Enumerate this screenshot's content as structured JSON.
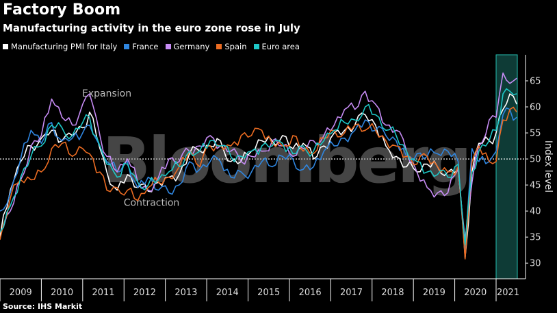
{
  "header": {
    "title": "Factory Boom",
    "subtitle": "Manufacturing activity in the euro zone rose in July"
  },
  "source": "Source: IHS Markit",
  "watermark": "Bloomberg",
  "chart_data": {
    "type": "line",
    "title": "Factory Boom",
    "subtitle": "Manufacturing activity in the euro zone rose in July",
    "xlabel": "",
    "ylabel": "Index level",
    "ylim": [
      27,
      70
    ],
    "yticks": [
      30,
      35,
      40,
      45,
      50,
      55,
      60,
      65
    ],
    "xticks": [
      "2009",
      "2010",
      "2011",
      "2012",
      "2013",
      "2014",
      "2015",
      "2016",
      "2017",
      "2018",
      "2019",
      "2020",
      "2021"
    ],
    "x_start": "2009-01",
    "x_end": "2021-07",
    "reference_line": 50,
    "highlight_region": {
      "from": "2021-01",
      "to": "2021-07",
      "color": "#0e3b36",
      "border": "#25c2b4"
    },
    "annotations": [
      {
        "text": "Expansion",
        "x": "2011-08",
        "y": 62
      },
      {
        "text": "Contraction",
        "x": "2012-09",
        "y": 41
      }
    ],
    "legend_position": "top",
    "grid": false,
    "series": [
      {
        "name": "Manufacturing PMI for Italy",
        "color": "#ffffff",
        "keypoints": [
          [
            "2009-01",
            35.0
          ],
          [
            "2009-04",
            44.0
          ],
          [
            "2009-07",
            49.5
          ],
          [
            "2009-10",
            52.5
          ],
          [
            "2010-01",
            54.0
          ],
          [
            "2010-04",
            55.5
          ],
          [
            "2010-07",
            53.5
          ],
          [
            "2010-10",
            54.5
          ],
          [
            "2011-01",
            56.0
          ],
          [
            "2011-03",
            59.0
          ],
          [
            "2011-06",
            52.0
          ],
          [
            "2011-08",
            47.5
          ],
          [
            "2011-11",
            44.0
          ],
          [
            "2012-02",
            47.0
          ],
          [
            "2012-05",
            44.5
          ],
          [
            "2012-08",
            43.8
          ],
          [
            "2012-11",
            45.5
          ],
          [
            "2013-02",
            46.5
          ],
          [
            "2013-05",
            47.0
          ],
          [
            "2013-08",
            51.0
          ],
          [
            "2013-11",
            51.5
          ],
          [
            "2014-02",
            52.5
          ],
          [
            "2014-05",
            53.5
          ],
          [
            "2014-08",
            49.5
          ],
          [
            "2014-11",
            49.5
          ],
          [
            "2015-02",
            51.5
          ],
          [
            "2015-05",
            53.5
          ],
          [
            "2015-08",
            53.5
          ],
          [
            "2015-11",
            54.5
          ],
          [
            "2016-02",
            52.0
          ],
          [
            "2016-05",
            53.0
          ],
          [
            "2016-08",
            50.0
          ],
          [
            "2016-11",
            52.5
          ],
          [
            "2017-02",
            55.0
          ],
          [
            "2017-05",
            55.5
          ],
          [
            "2017-08",
            56.5
          ],
          [
            "2017-11",
            58.5
          ],
          [
            "2018-02",
            56.5
          ],
          [
            "2018-05",
            52.5
          ],
          [
            "2018-08",
            50.5
          ],
          [
            "2018-11",
            48.5
          ],
          [
            "2019-02",
            47.5
          ],
          [
            "2019-05",
            49.0
          ],
          [
            "2019-08",
            48.5
          ],
          [
            "2019-11",
            47.5
          ],
          [
            "2020-02",
            48.0
          ],
          [
            "2020-04",
            31.0
          ],
          [
            "2020-06",
            47.5
          ],
          [
            "2020-08",
            53.0
          ],
          [
            "2020-11",
            53.5
          ],
          [
            "2021-01",
            55.0
          ],
          [
            "2021-03",
            59.5
          ],
          [
            "2021-05",
            62.5
          ],
          [
            "2021-07",
            60.5
          ]
        ]
      },
      {
        "name": "France",
        "color": "#2f86e0",
        "keypoints": [
          [
            "2009-01",
            40.0
          ],
          [
            "2009-04",
            43.5
          ],
          [
            "2009-07",
            50.0
          ],
          [
            "2009-10",
            55.5
          ],
          [
            "2010-01",
            53.0
          ],
          [
            "2010-04",
            57.0
          ],
          [
            "2010-07",
            53.5
          ],
          [
            "2010-10",
            54.0
          ],
          [
            "2011-01",
            55.0
          ],
          [
            "2011-03",
            56.5
          ],
          [
            "2011-06",
            52.5
          ],
          [
            "2011-08",
            49.5
          ],
          [
            "2011-11",
            47.5
          ],
          [
            "2012-02",
            49.5
          ],
          [
            "2012-05",
            44.5
          ],
          [
            "2012-08",
            46.5
          ],
          [
            "2012-11",
            44.0
          ],
          [
            "2013-02",
            43.5
          ],
          [
            "2013-05",
            45.0
          ],
          [
            "2013-08",
            49.5
          ],
          [
            "2013-11",
            48.0
          ],
          [
            "2014-02",
            49.5
          ],
          [
            "2014-05",
            49.5
          ],
          [
            "2014-08",
            46.5
          ],
          [
            "2014-11",
            47.5
          ],
          [
            "2015-02",
            47.5
          ],
          [
            "2015-05",
            49.5
          ],
          [
            "2015-08",
            48.5
          ],
          [
            "2015-11",
            50.5
          ],
          [
            "2016-02",
            50.0
          ],
          [
            "2016-05",
            48.0
          ],
          [
            "2016-08",
            48.5
          ],
          [
            "2016-11",
            51.5
          ],
          [
            "2017-02",
            52.5
          ],
          [
            "2017-05",
            54.0
          ],
          [
            "2017-08",
            55.5
          ],
          [
            "2017-11",
            57.5
          ],
          [
            "2018-02",
            55.5
          ],
          [
            "2018-05",
            54.5
          ],
          [
            "2018-08",
            53.5
          ],
          [
            "2018-11",
            50.5
          ],
          [
            "2019-02",
            51.0
          ],
          [
            "2019-05",
            50.5
          ],
          [
            "2019-08",
            51.0
          ],
          [
            "2019-11",
            51.5
          ],
          [
            "2020-02",
            49.5
          ],
          [
            "2020-04",
            32.0
          ],
          [
            "2020-06",
            52.0
          ],
          [
            "2020-08",
            49.5
          ],
          [
            "2020-11",
            49.5
          ],
          [
            "2021-01",
            51.5
          ],
          [
            "2021-03",
            58.5
          ],
          [
            "2021-05",
            59.5
          ],
          [
            "2021-07",
            58.0
          ]
        ]
      },
      {
        "name": "Germany",
        "color": "#c78cf5",
        "keypoints": [
          [
            "2009-01",
            36.0
          ],
          [
            "2009-04",
            40.0
          ],
          [
            "2009-07",
            46.0
          ],
          [
            "2009-10",
            52.5
          ],
          [
            "2010-01",
            54.5
          ],
          [
            "2010-04",
            61.5
          ],
          [
            "2010-07",
            58.0
          ],
          [
            "2010-10",
            56.5
          ],
          [
            "2011-01",
            60.5
          ],
          [
            "2011-03",
            62.5
          ],
          [
            "2011-06",
            54.5
          ],
          [
            "2011-08",
            50.5
          ],
          [
            "2011-11",
            47.5
          ],
          [
            "2012-02",
            50.0
          ],
          [
            "2012-05",
            45.5
          ],
          [
            "2012-08",
            44.0
          ],
          [
            "2012-11",
            46.5
          ],
          [
            "2013-02",
            50.0
          ],
          [
            "2013-05",
            49.5
          ],
          [
            "2013-08",
            51.5
          ],
          [
            "2013-11",
            52.5
          ],
          [
            "2014-02",
            54.5
          ],
          [
            "2014-05",
            52.5
          ],
          [
            "2014-08",
            51.5
          ],
          [
            "2014-11",
            49.5
          ],
          [
            "2015-02",
            50.5
          ],
          [
            "2015-05",
            51.5
          ],
          [
            "2015-08",
            53.5
          ],
          [
            "2015-11",
            52.5
          ],
          [
            "2016-02",
            50.5
          ],
          [
            "2016-05",
            52.0
          ],
          [
            "2016-08",
            53.5
          ],
          [
            "2016-11",
            54.5
          ],
          [
            "2017-02",
            56.5
          ],
          [
            "2017-05",
            59.5
          ],
          [
            "2017-08",
            59.5
          ],
          [
            "2017-11",
            63.0
          ],
          [
            "2018-02",
            60.5
          ],
          [
            "2018-05",
            56.5
          ],
          [
            "2018-08",
            55.5
          ],
          [
            "2018-11",
            51.5
          ],
          [
            "2019-02",
            47.5
          ],
          [
            "2019-05",
            44.5
          ],
          [
            "2019-08",
            43.5
          ],
          [
            "2019-11",
            43.5
          ],
          [
            "2020-02",
            48.0
          ],
          [
            "2020-04",
            34.5
          ],
          [
            "2020-06",
            45.5
          ],
          [
            "2020-08",
            52.5
          ],
          [
            "2020-11",
            57.5
          ],
          [
            "2021-01",
            58.0
          ],
          [
            "2021-03",
            66.5
          ],
          [
            "2021-05",
            64.5
          ],
          [
            "2021-07",
            65.5
          ]
        ]
      },
      {
        "name": "Spain",
        "color": "#ec6c22",
        "keypoints": [
          [
            "2009-01",
            34.5
          ],
          [
            "2009-04",
            42.5
          ],
          [
            "2009-07",
            46.0
          ],
          [
            "2009-10",
            46.0
          ],
          [
            "2010-01",
            47.5
          ],
          [
            "2010-04",
            52.0
          ],
          [
            "2010-07",
            53.0
          ],
          [
            "2010-10",
            50.5
          ],
          [
            "2011-01",
            52.0
          ],
          [
            "2011-03",
            51.0
          ],
          [
            "2011-06",
            47.5
          ],
          [
            "2011-08",
            44.0
          ],
          [
            "2011-11",
            44.5
          ],
          [
            "2012-02",
            44.0
          ],
          [
            "2012-05",
            42.0
          ],
          [
            "2012-08",
            44.5
          ],
          [
            "2012-11",
            45.5
          ],
          [
            "2013-02",
            46.5
          ],
          [
            "2013-05",
            48.5
          ],
          [
            "2013-08",
            51.5
          ],
          [
            "2013-11",
            48.5
          ],
          [
            "2014-02",
            52.5
          ],
          [
            "2014-05",
            52.5
          ],
          [
            "2014-08",
            52.5
          ],
          [
            "2014-11",
            54.5
          ],
          [
            "2015-02",
            54.5
          ],
          [
            "2015-05",
            55.5
          ],
          [
            "2015-08",
            53.0
          ],
          [
            "2015-11",
            52.5
          ],
          [
            "2016-02",
            54.5
          ],
          [
            "2016-05",
            51.5
          ],
          [
            "2016-08",
            51.0
          ],
          [
            "2016-11",
            54.0
          ],
          [
            "2017-02",
            55.5
          ],
          [
            "2017-05",
            55.0
          ],
          [
            "2017-08",
            56.5
          ],
          [
            "2017-11",
            55.5
          ],
          [
            "2018-02",
            55.5
          ],
          [
            "2018-05",
            53.5
          ],
          [
            "2018-08",
            52.5
          ],
          [
            "2018-11",
            50.5
          ],
          [
            "2019-02",
            49.0
          ],
          [
            "2019-05",
            50.5
          ],
          [
            "2019-08",
            48.5
          ],
          [
            "2019-11",
            47.5
          ],
          [
            "2020-02",
            48.5
          ],
          [
            "2020-04",
            30.8
          ],
          [
            "2020-06",
            49.5
          ],
          [
            "2020-08",
            52.5
          ],
          [
            "2020-11",
            49.5
          ],
          [
            "2021-01",
            49.5
          ],
          [
            "2021-03",
            57.5
          ],
          [
            "2021-05",
            59.5
          ],
          [
            "2021-07",
            59.0
          ]
        ]
      },
      {
        "name": "Euro area",
        "color": "#1ec8c8",
        "keypoints": [
          [
            "2009-01",
            36.0
          ],
          [
            "2009-04",
            41.0
          ],
          [
            "2009-07",
            46.5
          ],
          [
            "2009-10",
            50.5
          ],
          [
            "2010-01",
            52.5
          ],
          [
            "2010-04",
            56.5
          ],
          [
            "2010-07",
            56.0
          ],
          [
            "2010-10",
            54.5
          ],
          [
            "2011-01",
            57.0
          ],
          [
            "2011-03",
            58.0
          ],
          [
            "2011-06",
            52.5
          ],
          [
            "2011-08",
            49.0
          ],
          [
            "2011-11",
            46.5
          ],
          [
            "2012-02",
            49.0
          ],
          [
            "2012-05",
            45.5
          ],
          [
            "2012-08",
            45.0
          ],
          [
            "2012-11",
            46.0
          ],
          [
            "2013-02",
            47.5
          ],
          [
            "2013-05",
            48.5
          ],
          [
            "2013-08",
            51.5
          ],
          [
            "2013-11",
            51.5
          ],
          [
            "2014-02",
            53.5
          ],
          [
            "2014-05",
            52.5
          ],
          [
            "2014-08",
            50.5
          ],
          [
            "2014-11",
            50.5
          ],
          [
            "2015-02",
            51.5
          ],
          [
            "2015-05",
            52.5
          ],
          [
            "2015-08",
            52.5
          ],
          [
            "2015-11",
            53.0
          ],
          [
            "2016-02",
            51.0
          ],
          [
            "2016-05",
            52.5
          ],
          [
            "2016-08",
            51.5
          ],
          [
            "2016-11",
            53.5
          ],
          [
            "2017-02",
            55.5
          ],
          [
            "2017-05",
            57.0
          ],
          [
            "2017-08",
            57.5
          ],
          [
            "2017-11",
            60.0
          ],
          [
            "2018-02",
            58.5
          ],
          [
            "2018-05",
            55.5
          ],
          [
            "2018-08",
            54.5
          ],
          [
            "2018-11",
            51.5
          ],
          [
            "2019-02",
            49.5
          ],
          [
            "2019-05",
            47.5
          ],
          [
            "2019-08",
            47.0
          ],
          [
            "2019-11",
            46.5
          ],
          [
            "2020-02",
            49.0
          ],
          [
            "2020-04",
            33.5
          ],
          [
            "2020-06",
            47.5
          ],
          [
            "2020-08",
            51.5
          ],
          [
            "2020-11",
            53.5
          ],
          [
            "2021-01",
            55.5
          ],
          [
            "2021-03",
            62.5
          ],
          [
            "2021-05",
            63.0
          ],
          [
            "2021-07",
            62.5
          ]
        ]
      }
    ]
  }
}
